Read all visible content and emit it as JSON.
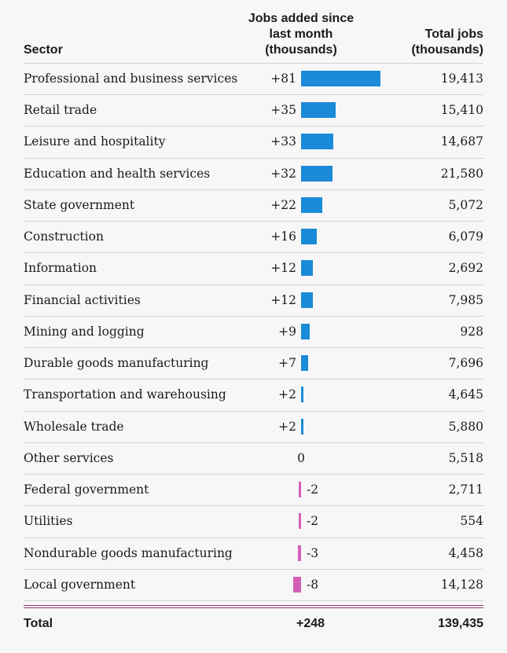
{
  "colors": {
    "positive": "#1b8ad9",
    "negative": "#d45fb8",
    "rule": "#d4d4d4",
    "double_rule": "#9b3a6e"
  },
  "chart_data": {
    "type": "table",
    "columns": {
      "sector": "Sector",
      "added": "Jobs added since\nlast month\n(thousands)",
      "total": "Total jobs\n(thousands)"
    },
    "rows": [
      {
        "sector": "Professional and business services",
        "added_label": "+81",
        "added": 81,
        "total": "19,413"
      },
      {
        "sector": "Retail trade",
        "added_label": "+35",
        "added": 35,
        "total": "15,410"
      },
      {
        "sector": "Leisure and hospitality",
        "added_label": "+33",
        "added": 33,
        "total": "14,687"
      },
      {
        "sector": "Education and health services",
        "added_label": "+32",
        "added": 32,
        "total": "21,580"
      },
      {
        "sector": "State government",
        "added_label": "+22",
        "added": 22,
        "total": "5,072"
      },
      {
        "sector": "Construction",
        "added_label": "+16",
        "added": 16,
        "total": "6,079"
      },
      {
        "sector": "Information",
        "added_label": "+12",
        "added": 12,
        "total": "2,692"
      },
      {
        "sector": "Financial activities",
        "added_label": "+12",
        "added": 12,
        "total": "7,985"
      },
      {
        "sector": "Mining and logging",
        "added_label": "+9",
        "added": 9,
        "total": "928"
      },
      {
        "sector": "Durable goods manufacturing",
        "added_label": "+7",
        "added": 7,
        "total": "7,696"
      },
      {
        "sector": "Transportation and warehousing",
        "added_label": "+2",
        "added": 2,
        "total": "4,645"
      },
      {
        "sector": "Wholesale trade",
        "added_label": "+2",
        "added": 2,
        "total": "5,880"
      },
      {
        "sector": "Other services",
        "added_label": "0",
        "added": 0,
        "total": "5,518"
      },
      {
        "sector": "Federal government",
        "added_label": "-2",
        "added": -2,
        "total": "2,711"
      },
      {
        "sector": "Utilities",
        "added_label": "-2",
        "added": -2,
        "total": "554"
      },
      {
        "sector": "Nondurable goods manufacturing",
        "added_label": "-3",
        "added": -3,
        "total": "4,458"
      },
      {
        "sector": "Local government",
        "added_label": "-8",
        "added": -8,
        "total": "14,128"
      }
    ],
    "total": {
      "label": "Total",
      "added_label": "+248",
      "total": "139,435"
    }
  }
}
